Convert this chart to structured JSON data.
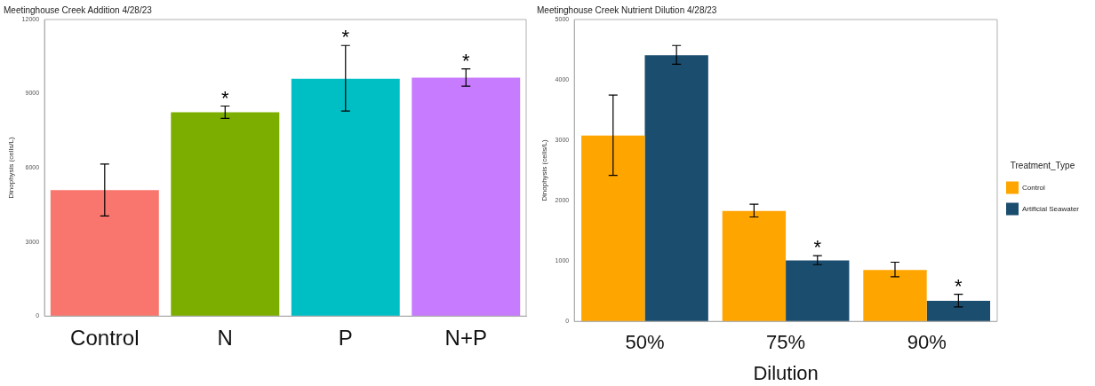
{
  "chart_data": [
    {
      "type": "bar",
      "title": "Meetinghouse Creek Addition 4/28/23",
      "ylabel": "Dinophysis (cells/L)",
      "categories": [
        "Control",
        "N",
        "P",
        "N+P"
      ],
      "values": [
        5100,
        8250,
        9600,
        9650
      ],
      "colors": [
        "#f8766d",
        "#7cae00",
        "#00bfc4",
        "#c77cff"
      ],
      "errors": [
        [
          4050,
          6150
        ],
        [
          8000,
          8500
        ],
        [
          8300,
          10950
        ],
        [
          9300,
          10000
        ]
      ],
      "ylim": [
        0,
        12000
      ],
      "yticks": [
        0,
        3000,
        6000,
        9000,
        12000
      ],
      "grid": false,
      "legend": false,
      "annotations": [
        {
          "text": "*",
          "x": "N",
          "y": 8250
        },
        {
          "text": "*",
          "x": "P",
          "y": 9600
        },
        {
          "text": "*",
          "x": "N+P",
          "y": 9650
        }
      ]
    },
    {
      "type": "bar",
      "title": "Meetinghouse Creek Nutrient Dilution 4/28/23",
      "ylabel": "Dinophysis (cells/L)",
      "xlabel": "Dilution",
      "legend_title": "Treatment_Type",
      "categories": [
        "50%",
        "75%",
        "90%"
      ],
      "series": [
        {
          "name": "Control",
          "color": "#ffa500",
          "values": [
            3080,
            1830,
            850
          ],
          "errors": [
            [
              2420,
              3750
            ],
            [
              1730,
              1940
            ],
            [
              740,
              980
            ]
          ]
        },
        {
          "name": "Artificial Seawater",
          "color": "#1b4d6e",
          "values": [
            4410,
            1010,
            340
          ],
          "errors": [
            [
              4260,
              4570
            ],
            [
              940,
              1090
            ],
            [
              240,
              450
            ]
          ]
        }
      ],
      "ylim": [
        0,
        5000
      ],
      "yticks": [
        0,
        1000,
        2000,
        3000,
        4000,
        5000
      ],
      "grid": false,
      "legend": "right",
      "annotations": [
        {
          "text": "*",
          "x": "75%",
          "y": 1010
        },
        {
          "text": "*",
          "x": "90%",
          "y": 340
        }
      ]
    }
  ]
}
